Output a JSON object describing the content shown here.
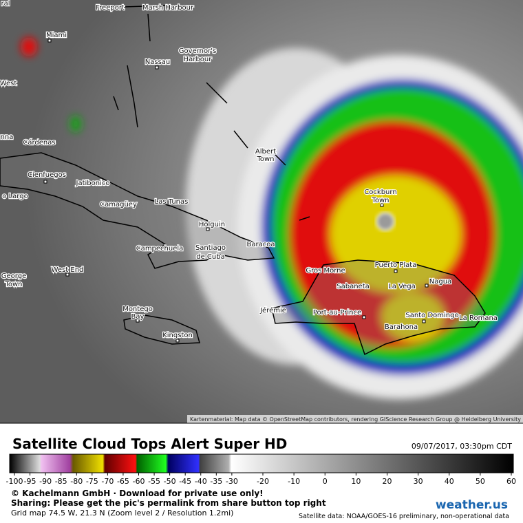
{
  "map": {
    "places": [
      "ral",
      "Freeport",
      "Marsh Harbour",
      "Miami",
      "Nassau",
      [
        "Governor's",
        "Harbour"
      ],
      "West",
      "nna",
      "Cárdenas",
      [
        "Albert",
        "Town"
      ],
      "Cienfuegos",
      "Jatibonico",
      [
        "Cockburn",
        "Town"
      ],
      "o Largo",
      "Camagüey",
      "Las Tunas",
      "Holguin",
      "Baracoa",
      "Campechuela",
      [
        "Santiago",
        "de Cuba"
      ],
      [
        "George",
        "Town"
      ],
      "West End",
      "Gros Morne",
      "Puerto Plata",
      "Sabaneta",
      "La Vega",
      "Nagua",
      [
        "Montego",
        "Bay"
      ],
      "Jérémie",
      "Port-au-Prince",
      "Santo Domingo",
      "La Romana",
      "Kingston",
      "Barahona"
    ],
    "attribution": "Kartenmaterial: Map data © OpenStreetMap contributors, rendering GIScience Research Group @ Heidelberg University"
  },
  "legend": {
    "title": "Satellite Cloud Tops Alert Super HD",
    "timestamp": "09/07/2017, 03:30pm CDT",
    "ticks": [
      -100,
      -95,
      -90,
      -85,
      -80,
      -75,
      -70,
      -65,
      -60,
      -55,
      -50,
      -45,
      -40,
      -35,
      -30,
      -20,
      -10,
      0,
      10,
      20,
      30,
      40,
      50,
      60
    ],
    "copyright": "© Kachelmann GmbH · Download for private use only!",
    "sharing": "Sharing: Please get the pic's permalink from share button top right",
    "grid_info": "Grid map 74.5 W, 21.3 N (Zoom level 2 / Resolution 1.2mi)",
    "satellite_info": "Satellite data: NOAA/GOES-16 preliminary, non-operational data",
    "logo": "weather.us"
  }
}
